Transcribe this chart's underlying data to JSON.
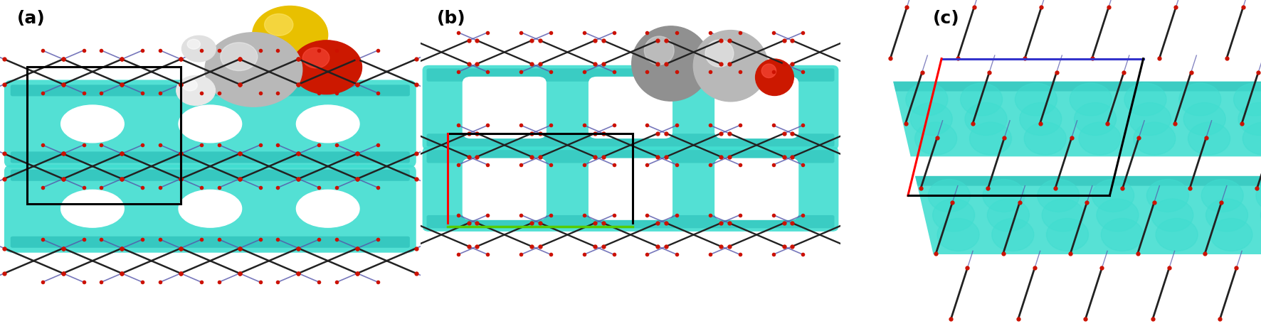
{
  "figure_width": 17.72,
  "figure_height": 4.59,
  "dpi": 100,
  "background_color": "#ffffff",
  "panel_labels": [
    "(a)",
    "(b)",
    "(c)"
  ],
  "panel_label_fontsize": 18,
  "inset_bg_color": "#1c1ca0",
  "crystal_surface_color": "#40ddd0",
  "crystal_surface_color2": "#2abfb8",
  "crystal_framework_color": "#222222",
  "crystal_red_atom": "#cc1100",
  "crystal_blue_line": "#5555aa",
  "crystal_white": "#ffffff"
}
